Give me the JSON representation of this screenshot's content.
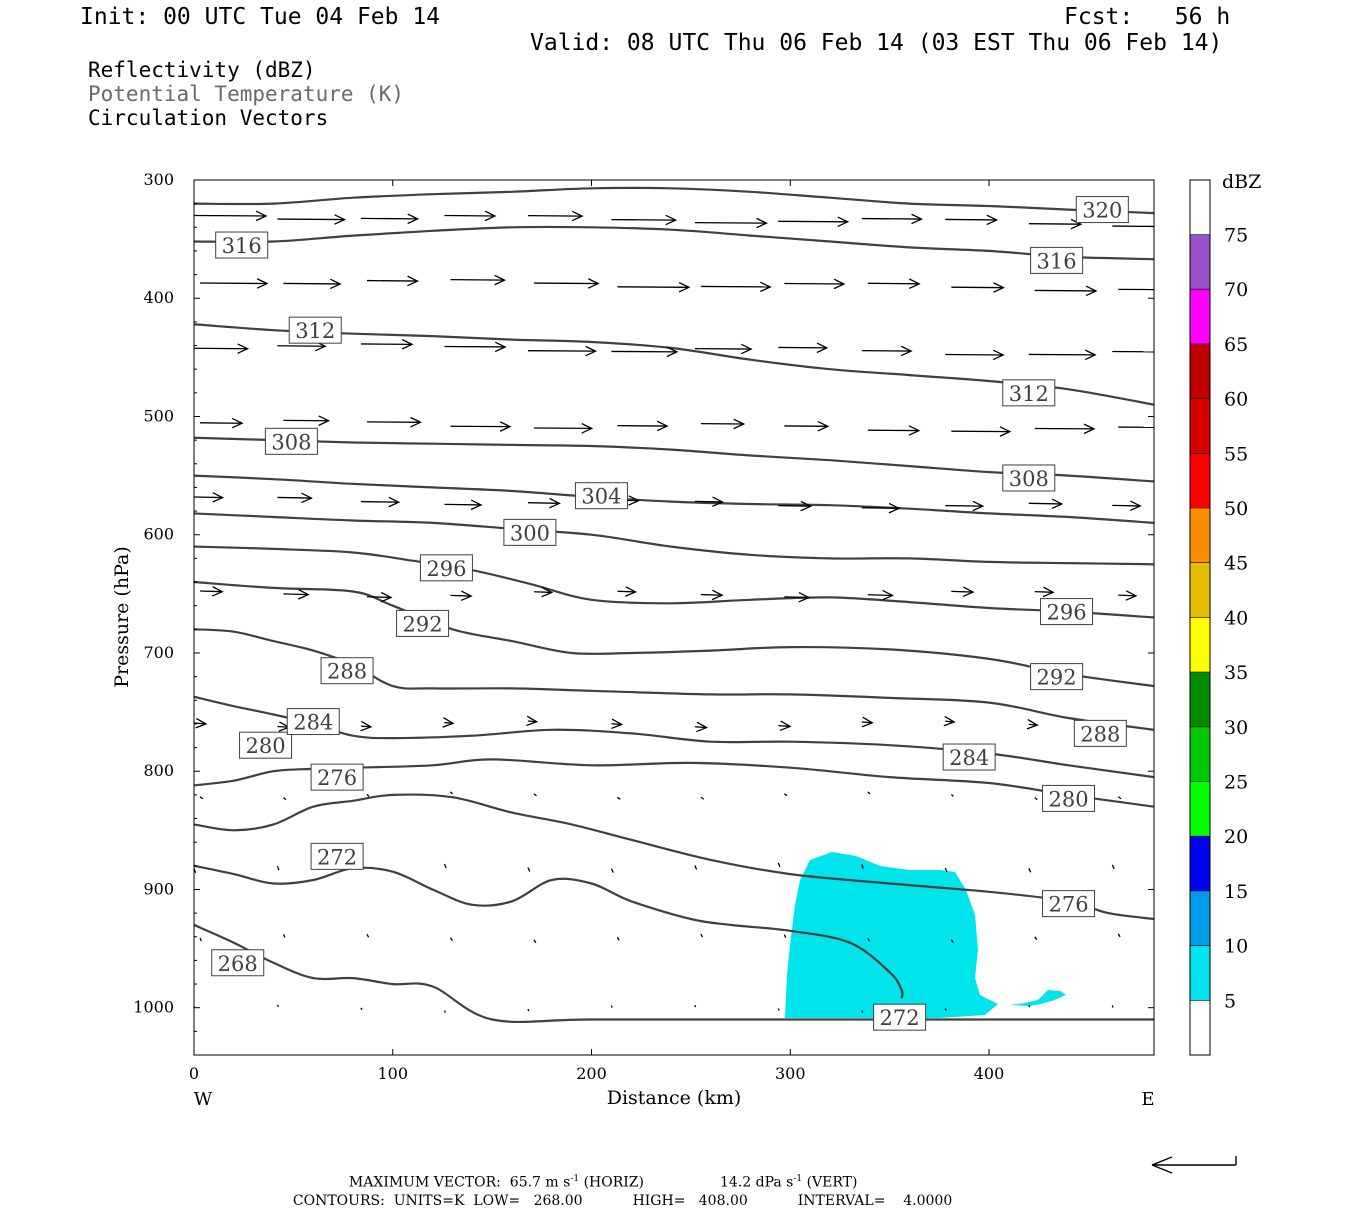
{
  "header": {
    "init": "Init: 00 UTC Tue 04 Feb 14",
    "fcst": "Fcst:   56 h",
    "valid": "Valid: 08 UTC Thu 06 Feb 14 (03 EST Thu 06 Feb 14)"
  },
  "fields": {
    "reflectivity": "Reflectivity (dBZ)",
    "theta": "Potential Temperature (K)",
    "vectors": "Circulation Vectors"
  },
  "chart_data": {
    "type": "cross-section",
    "xlabel": "Distance (km)",
    "ylabel": "Pressure (hPa)",
    "xlim": [
      0,
      483
    ],
    "ylim": [
      1040,
      300
    ],
    "x_ticks": [
      "0",
      "100",
      "200",
      "300",
      "400"
    ],
    "y_ticks": [
      "300",
      "400",
      "500",
      "600",
      "700",
      "800",
      "900",
      "1000"
    ],
    "x_tick_values": [
      0,
      100,
      200,
      300,
      400
    ],
    "y_tick_values": [
      300,
      400,
      500,
      600,
      700,
      800,
      900,
      1000
    ],
    "x_end_labels": {
      "left": "W",
      "right": "E"
    },
    "colorbar": {
      "unit": "dBZ",
      "levels": [
        5,
        10,
        15,
        20,
        25,
        30,
        35,
        40,
        45,
        50,
        55,
        60,
        65,
        70,
        75
      ],
      "labels": [
        "5",
        "10",
        "15",
        "20",
        "25",
        "30",
        "35",
        "40",
        "45",
        "50",
        "55",
        "60",
        "65",
        "70",
        "75"
      ],
      "colors": [
        "#00e5ec",
        "#009ded",
        "#0000f0",
        "#00ff00",
        "#00c800",
        "#008c00",
        "#ffff00",
        "#e6be00",
        "#ff8c00",
        "#ff0000",
        "#d70000",
        "#c00000",
        "#ff00ff",
        "#9a50c8",
        "#ffffff"
      ]
    },
    "contours": [
      {
        "label": "268",
        "points": [
          [
            0,
            930
          ],
          [
            20,
            945
          ],
          [
            40,
            962
          ],
          [
            60,
            975
          ],
          [
            80,
            975
          ],
          [
            100,
            980
          ],
          [
            120,
            982
          ],
          [
            150,
            1010
          ],
          [
            200,
            1010
          ],
          [
            300,
            1010
          ],
          [
            400,
            1010
          ],
          [
            483,
            1010
          ]
        ],
        "label_pos": [
          [
            22,
            962
          ]
        ]
      },
      {
        "label": "272",
        "points": [
          [
            0,
            880
          ],
          [
            20,
            887
          ],
          [
            40,
            895
          ],
          [
            60,
            892
          ],
          [
            80,
            882
          ],
          [
            100,
            885
          ],
          [
            120,
            900
          ],
          [
            140,
            913
          ],
          [
            160,
            910
          ],
          [
            180,
            892
          ],
          [
            200,
            895
          ],
          [
            220,
            910
          ],
          [
            250,
            925
          ],
          [
            270,
            930
          ],
          [
            300,
            935
          ],
          [
            330,
            945
          ],
          [
            350,
            970
          ],
          [
            356,
            985
          ],
          [
            356,
            992
          ]
        ],
        "label_pos": [
          [
            72,
            872
          ],
          [
            355,
            1008
          ]
        ]
      },
      {
        "label": "276",
        "points": [
          [
            0,
            845
          ],
          [
            20,
            850
          ],
          [
            40,
            845
          ],
          [
            60,
            830
          ],
          [
            80,
            825
          ],
          [
            100,
            820
          ],
          [
            130,
            822
          ],
          [
            160,
            835
          ],
          [
            190,
            845
          ],
          [
            220,
            858
          ],
          [
            260,
            875
          ],
          [
            300,
            887
          ],
          [
            350,
            895
          ],
          [
            400,
            902
          ],
          [
            440,
            910
          ],
          [
            460,
            920
          ],
          [
            483,
            925
          ]
        ],
        "label_pos": [
          [
            72,
            805
          ],
          [
            440,
            912
          ]
        ]
      },
      {
        "label": "280",
        "points": [
          [
            0,
            812
          ],
          [
            20,
            808
          ],
          [
            40,
            800
          ],
          [
            60,
            798
          ],
          [
            80,
            797
          ],
          [
            120,
            795
          ],
          [
            150,
            790
          ],
          [
            200,
            795
          ],
          [
            250,
            793
          ],
          [
            300,
            797
          ],
          [
            350,
            805
          ],
          [
            400,
            810
          ],
          [
            440,
            820
          ],
          [
            483,
            830
          ]
        ],
        "label_pos": [
          [
            36,
            778
          ],
          [
            440,
            823
          ]
        ]
      },
      {
        "label": "284",
        "points": [
          [
            0,
            737
          ],
          [
            20,
            745
          ],
          [
            40,
            752
          ],
          [
            60,
            760
          ],
          [
            80,
            770
          ],
          [
            100,
            772
          ],
          [
            140,
            770
          ],
          [
            180,
            765
          ],
          [
            220,
            768
          ],
          [
            260,
            775
          ],
          [
            300,
            775
          ],
          [
            350,
            778
          ],
          [
            400,
            785
          ],
          [
            440,
            795
          ],
          [
            483,
            805
          ]
        ],
        "label_pos": [
          [
            60,
            758
          ],
          [
            390,
            788
          ]
        ]
      },
      {
        "label": "288",
        "points": [
          [
            0,
            680
          ],
          [
            20,
            682
          ],
          [
            40,
            690
          ],
          [
            60,
            698
          ],
          [
            80,
            710
          ],
          [
            100,
            728
          ],
          [
            120,
            730
          ],
          [
            160,
            730
          ],
          [
            200,
            732
          ],
          [
            260,
            735
          ],
          [
            300,
            735
          ],
          [
            350,
            738
          ],
          [
            400,
            742
          ],
          [
            440,
            755
          ],
          [
            483,
            765
          ]
        ],
        "label_pos": [
          [
            77,
            715
          ],
          [
            456,
            768
          ]
        ]
      },
      {
        "label": "292",
        "points": [
          [
            0,
            640
          ],
          [
            40,
            645
          ],
          [
            80,
            648
          ],
          [
            100,
            660
          ],
          [
            130,
            680
          ],
          [
            160,
            690
          ],
          [
            190,
            700
          ],
          [
            220,
            700
          ],
          [
            260,
            698
          ],
          [
            300,
            695
          ],
          [
            350,
            697
          ],
          [
            400,
            705
          ],
          [
            440,
            718
          ],
          [
            483,
            728
          ]
        ],
        "label_pos": [
          [
            115,
            675
          ],
          [
            434,
            720
          ]
        ]
      },
      {
        "label": "296",
        "points": [
          [
            0,
            610
          ],
          [
            40,
            612
          ],
          [
            80,
            615
          ],
          [
            110,
            622
          ],
          [
            140,
            630
          ],
          [
            170,
            642
          ],
          [
            200,
            655
          ],
          [
            240,
            658
          ],
          [
            280,
            655
          ],
          [
            320,
            653
          ],
          [
            360,
            657
          ],
          [
            400,
            662
          ],
          [
            440,
            665
          ],
          [
            483,
            670
          ]
        ],
        "label_pos": [
          [
            127,
            628
          ],
          [
            439,
            665
          ]
        ]
      },
      {
        "label": "300",
        "points": [
          [
            0,
            582
          ],
          [
            40,
            585
          ],
          [
            80,
            588
          ],
          [
            120,
            590
          ],
          [
            160,
            595
          ],
          [
            200,
            600
          ],
          [
            240,
            610
          ],
          [
            280,
            617
          ],
          [
            320,
            620
          ],
          [
            360,
            620
          ],
          [
            400,
            623
          ],
          [
            440,
            624
          ],
          [
            483,
            625
          ]
        ],
        "label_pos": [
          [
            169,
            598
          ]
        ]
      },
      {
        "label": "304",
        "points": [
          [
            0,
            550
          ],
          [
            40,
            553
          ],
          [
            80,
            557
          ],
          [
            120,
            560
          ],
          [
            160,
            563
          ],
          [
            200,
            568
          ],
          [
            240,
            572
          ],
          [
            280,
            574
          ],
          [
            320,
            575
          ],
          [
            360,
            578
          ],
          [
            400,
            582
          ],
          [
            440,
            585
          ],
          [
            483,
            590
          ]
        ],
        "label_pos": [
          [
            205,
            567
          ]
        ]
      },
      {
        "label": "308",
        "points": [
          [
            0,
            518
          ],
          [
            40,
            520
          ],
          [
            80,
            522
          ],
          [
            120,
            523
          ],
          [
            160,
            524
          ],
          [
            200,
            525
          ],
          [
            240,
            528
          ],
          [
            280,
            533
          ],
          [
            320,
            537
          ],
          [
            360,
            542
          ],
          [
            400,
            547
          ],
          [
            440,
            550
          ],
          [
            483,
            555
          ]
        ],
        "label_pos": [
          [
            49,
            521
          ],
          [
            420,
            552
          ]
        ]
      },
      {
        "label": "312",
        "points": [
          [
            0,
            422
          ],
          [
            40,
            427
          ],
          [
            80,
            430
          ],
          [
            120,
            432
          ],
          [
            160,
            435
          ],
          [
            200,
            437
          ],
          [
            240,
            442
          ],
          [
            280,
            452
          ],
          [
            320,
            460
          ],
          [
            360,
            465
          ],
          [
            400,
            470
          ],
          [
            440,
            477
          ],
          [
            483,
            490
          ]
        ],
        "label_pos": [
          [
            61,
            427
          ],
          [
            420,
            480
          ]
        ]
      },
      {
        "label": "316",
        "points": [
          [
            0,
            352
          ],
          [
            40,
            352
          ],
          [
            80,
            347
          ],
          [
            120,
            343
          ],
          [
            160,
            340
          ],
          [
            200,
            340
          ],
          [
            240,
            342
          ],
          [
            280,
            347
          ],
          [
            320,
            352
          ],
          [
            360,
            357
          ],
          [
            400,
            360
          ],
          [
            440,
            365
          ],
          [
            483,
            367
          ]
        ],
        "label_pos": [
          [
            24,
            355
          ],
          [
            434,
            368
          ]
        ]
      },
      {
        "label": "320",
        "points": [
          [
            0,
            320
          ],
          [
            40,
            320
          ],
          [
            80,
            315
          ],
          [
            120,
            312
          ],
          [
            160,
            310
          ],
          [
            200,
            307
          ],
          [
            240,
            307
          ],
          [
            280,
            310
          ],
          [
            320,
            315
          ],
          [
            360,
            320
          ],
          [
            400,
            322
          ],
          [
            440,
            325
          ],
          [
            483,
            328
          ]
        ],
        "label_pos": [
          [
            457,
            325
          ]
        ]
      }
    ],
    "vector_scale": {
      "horiz": "65.7",
      "horiz_unit": "m s",
      "vert": "14.2",
      "vert_unit": "dPa s"
    }
  },
  "footer": {
    "max_vector_label": "MAXIMUM VECTOR:",
    "max_horiz": "65.7 m s",
    "max_horiz_tag": "(HORIZ)",
    "max_vert": "14.2 dPa s",
    "max_vert_tag": "(VERT)",
    "exp": "-1",
    "contours_label": "CONTOURS:",
    "units": "UNITS=K",
    "low": "LOW=   268.00",
    "high": "HIGH=   408.00",
    "interval": "INTERVAL=    4.0000"
  }
}
